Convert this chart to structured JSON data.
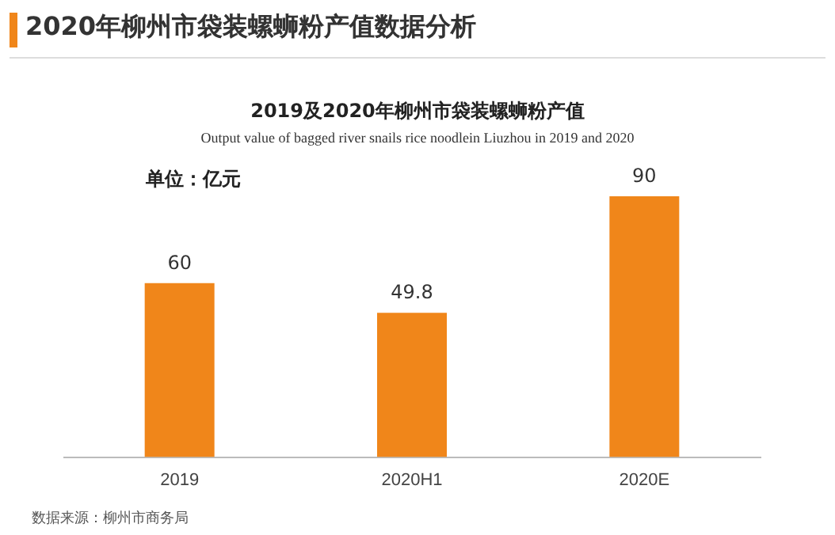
{
  "chart_data": {
    "type": "bar",
    "title": "2020年柳州市袋装螺蛳粉产值数据分析",
    "subtitle": "2019及2020年柳州市袋装螺蛳粉产值",
    "annotations": [
      "Output value of bagged river snails rice noodlein Liuzhou in 2019 and 2020",
      "单位：亿元",
      "数据来源：柳州市商务局"
    ],
    "categories": [
      "2019",
      "2020H1",
      "2020E"
    ],
    "values": [
      60,
      49.8,
      90
    ],
    "color": "#f0861a",
    "data_labels": true,
    "grid": false,
    "legend": false,
    "tick_labels": "x"
  }
}
